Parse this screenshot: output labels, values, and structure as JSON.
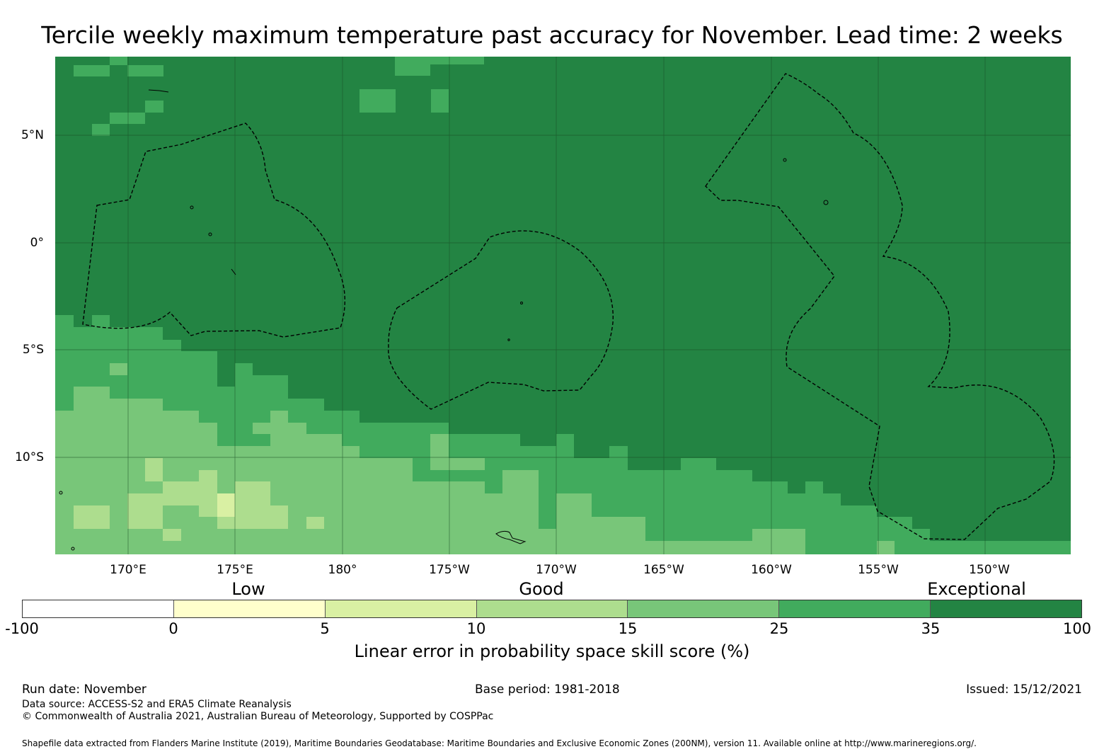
{
  "title": "Tercile weekly maximum temperature past accuracy for November. Lead time: 2 weeks",
  "map": {
    "lon_labels": [
      "170°E",
      "175°E",
      "180°",
      "175°W",
      "170°W",
      "165°W",
      "160°W",
      "155°W",
      "150°W"
    ],
    "lat_labels": [
      "5°N",
      "0°",
      "5°S",
      "10°S"
    ],
    "colors": {
      "exceptional": "#238443",
      "band_25_35": "#41ab5d",
      "band_15_25": "#78c679",
      "band_10_15": "#addd8e",
      "band_5_10": "#d9f0a3",
      "band_0_5": "#ffffcc",
      "grid": "#1a4d25",
      "eez_line": "#000000"
    }
  },
  "colorbar": {
    "category_labels": [
      "Low",
      "Good",
      "Exceptional"
    ],
    "tick_labels": [
      "-100",
      "0",
      "5",
      "10",
      "15",
      "25",
      "35",
      "100"
    ],
    "colors": [
      "#ffffff",
      "#ffffcc",
      "#d9f0a3",
      "#addd8e",
      "#78c679",
      "#41ab5d",
      "#238443"
    ],
    "title": "Linear error in probability space skill score (%)"
  },
  "footer": {
    "run_date": "Run date: November",
    "base_period": "Base period: 1981-2018",
    "issued": "Issued: 15/12/2021",
    "data_source": "Data source: ACCESS-S2 and ERA5 Climate Reanalysis",
    "copyright": "© Commonwealth of Australia 2021, Australian Bureau of Meteorology, Supported by COSPPac",
    "shapefile": "Shapefile data extracted from Flanders Marine Institute (2019), Maritime Boundaries Geodatabase: Maritime Boundaries and Exclusive Economic Zones (200NM), version 11. Available online at http://www.marineregions.org/."
  }
}
